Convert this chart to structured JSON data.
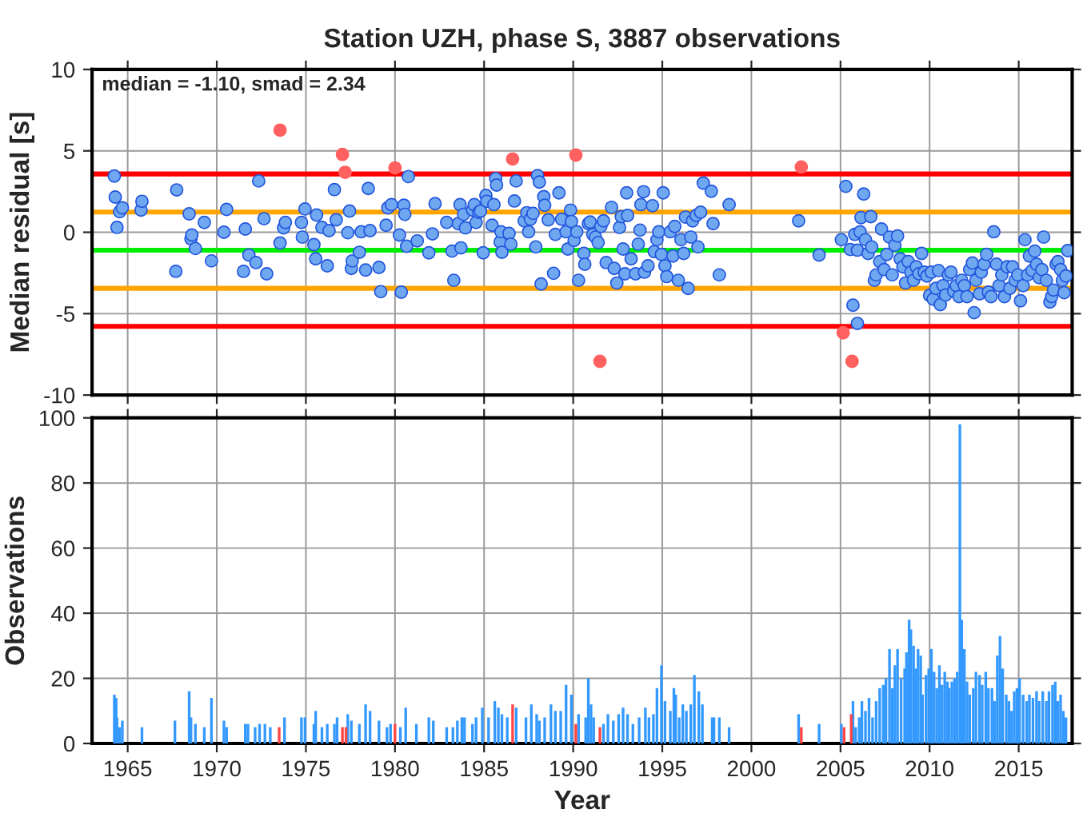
{
  "chart_data": [
    {
      "type": "scatter",
      "title": "Station UZH, phase S, 3887 observations",
      "ylabel": "Median residual [s]",
      "xlim": [
        1963,
        2018
      ],
      "xticks": [
        1965,
        1970,
        1975,
        1980,
        1985,
        1990,
        1995,
        2000,
        2005,
        2010,
        2015
      ],
      "ylim": [
        -10,
        10
      ],
      "yticks": [
        -10,
        -5,
        0,
        5,
        10
      ],
      "grid": true,
      "legend": false,
      "tick_labels": "y",
      "marker": "circle",
      "annotations": [
        "median = -1.10, smad = 2.34"
      ],
      "ref_lines": [
        {
          "axis": "y",
          "value": 3.58,
          "color": "#ff0000"
        },
        {
          "axis": "y",
          "value": 1.24,
          "color": "#ffa500"
        },
        {
          "axis": "y",
          "value": -1.1,
          "color": "#00ee00"
        },
        {
          "axis": "y",
          "value": -3.44,
          "color": "#ffa500"
        },
        {
          "axis": "y",
          "value": -5.78,
          "color": "#ff0000"
        }
      ],
      "series": [
        {
          "color": "#6fa8f0",
          "x": [
            1964.25,
            1964.3,
            1964.4,
            1964.55,
            1964.7,
            1965.75,
            1965.8,
            1967.75,
            1967.7,
            1968.45,
            1968.55,
            1968.6,
            1968.8,
            1969.3,
            1969.7,
            1970.4,
            1970.55,
            1971.5,
            1971.6,
            1971.8,
            1972.2,
            1972.35,
            1972.65,
            1972.8,
            1973.55,
            1973.75,
            1973.85,
            1974.75,
            1974.8,
            1974.95,
            1975.45,
            1975.55,
            1975.6,
            1975.9,
            1976.2,
            1976.3,
            1976.6,
            1976.7,
            1977.35,
            1977.45,
            1977.55,
            1977.6,
            1978.0,
            1978.1,
            1978.35,
            1978.5,
            1978.6,
            1979.1,
            1979.2,
            1979.5,
            1979.6,
            1979.8,
            1980.25,
            1980.35,
            1980.5,
            1980.55,
            1980.65,
            1980.75,
            1981.25,
            1981.9,
            1982.1,
            1982.25,
            1982.9,
            1983.2,
            1983.3,
            1983.55,
            1983.65,
            1983.7,
            1983.85,
            1983.95,
            1984.35,
            1984.45,
            1984.55,
            1984.7,
            1984.8,
            1984.95,
            1985.1,
            1985.15,
            1985.45,
            1985.55,
            1985.65,
            1985.7,
            1985.9,
            1985.95,
            1986.0,
            1986.4,
            1986.5,
            1986.7,
            1986.8,
            1987.25,
            1987.4,
            1987.5,
            1987.6,
            1987.75,
            1987.9,
            1988.0,
            1988.1,
            1988.2,
            1988.35,
            1988.4,
            1988.6,
            1988.9,
            1989.0,
            1989.2,
            1989.35,
            1989.6,
            1989.7,
            1989.85,
            1989.9,
            1990.05,
            1990.2,
            1990.3,
            1990.6,
            1990.65,
            1990.85,
            1990.95,
            1991.1,
            1991.25,
            1991.4,
            1991.55,
            1991.7,
            1991.85,
            1992.15,
            1992.3,
            1992.45,
            1992.6,
            1992.7,
            1992.8,
            1992.9,
            1993.0,
            1993.05,
            1993.25,
            1993.5,
            1993.65,
            1993.75,
            1993.8,
            1993.95,
            1994.0,
            1994.2,
            1994.45,
            1994.55,
            1994.7,
            1994.8,
            1994.95,
            1995.05,
            1995.15,
            1995.25,
            1995.45,
            1995.6,
            1995.7,
            1995.9,
            1996.05,
            1996.2,
            1996.3,
            1996.45,
            1996.6,
            1996.7,
            1996.9,
            1997.0,
            1997.15,
            1997.3,
            1997.75,
            1997.85,
            1998.2,
            1998.75,
            2002.65,
            2003.8,
            2005.05,
            2005.3,
            2005.55,
            2005.7,
            2005.8,
            2005.95,
            2005.95,
            2006.1,
            2006.15,
            2006.3,
            2006.4,
            2006.55,
            2006.7,
            2006.75,
            2006.9,
            2007.0,
            2007.2,
            2007.3,
            2007.45,
            2007.6,
            2007.75,
            2007.9,
            2008.05,
            2008.2,
            2008.35,
            2008.5,
            2008.65,
            2008.8,
            2008.95,
            2009.1,
            2009.25,
            2009.4,
            2009.55,
            2009.7,
            2009.85,
            2010.0,
            2010.1,
            2010.2,
            2010.35,
            2010.5,
            2010.6,
            2010.75,
            2010.9,
            2011.05,
            2011.2,
            2011.35,
            2011.5,
            2011.65,
            2011.8,
            2011.95,
            2012.1,
            2012.25,
            2012.4,
            2012.5,
            2012.6,
            2012.8,
            2012.9,
            2013.05,
            2013.2,
            2013.3,
            2013.45,
            2013.6,
            2013.75,
            2013.9,
            2014.05,
            2014.2,
            2014.35,
            2014.5,
            2014.65,
            2014.8,
            2014.95,
            2015.1,
            2015.25,
            2015.35,
            2015.5,
            2015.6,
            2015.75,
            2015.9,
            2016.0,
            2016.15,
            2016.3,
            2016.4,
            2016.55,
            2016.75,
            2016.85,
            2016.95,
            2017.1,
            2017.2,
            2017.35,
            2017.45,
            2017.55,
            2017.65,
            2017.75
          ],
          "values": [
            3.45,
            2.16,
            0.3,
            1.26,
            1.5,
            1.36,
            1.9,
            2.6,
            -2.4,
            1.13,
            -0.4,
            -0.17,
            -1.0,
            0.6,
            -1.76,
            0,
            1.4,
            -2.4,
            0.2,
            -1.4,
            -1.86,
            3.15,
            0.83,
            -2.55,
            -0.66,
            0.27,
            0.6,
            0.6,
            -0.3,
            1.43,
            -0.76,
            -1.63,
            1.06,
            0.3,
            -2.06,
            0.1,
            2.62,
            0.76,
            -0.03,
            1.3,
            -2.22,
            -1.76,
            -1.23,
            0.03,
            -2.32,
            2.69,
            0.1,
            -2.16,
            -3.65,
            0.43,
            1.5,
            1.7,
            -0.17,
            -3.68,
            1.66,
            1.1,
            -0.86,
            3.42,
            -0.53,
            -1.26,
            -0.1,
            1.76,
            0.6,
            -1.16,
            -2.95,
            0.53,
            1.7,
            -0.96,
            1.1,
            0.27,
            1.36,
            1.7,
            0.6,
            1.23,
            1.3,
            -1.26,
            2.26,
            1.9,
            0.43,
            1.7,
            3.3,
            2.9,
            -0.6,
            0.03,
            -1.23,
            -0.07,
            -0.73,
            1.92,
            3.15,
            0.7,
            1.2,
            0.03,
            0.8,
            1.16,
            -0.9,
            3.48,
            3.08,
            -3.18,
            2.19,
            1.66,
            0.76,
            -2.52,
            -0.13,
            2.42,
            0.8,
            0.03,
            -1.03,
            1.36,
            0.66,
            -0.5,
            0.03,
            -2.95,
            -1.3,
            -1.96,
            0.53,
            0.63,
            -0.13,
            -0.3,
            -0.63,
            0.36,
            0.7,
            -1.86,
            1.53,
            -2.22,
            -3.12,
            0.3,
            0.96,
            -1.03,
            -2.55,
            2.42,
            1.03,
            -1.63,
            -2.55,
            -0.73,
            0.13,
            1.7,
            2.49,
            -2.45,
            -2.06,
            1.63,
            -1.19,
            -0.46,
            0.03,
            -1.36,
            2.42,
            -2.06,
            -2.72,
            0.03,
            -1.46,
            0.36,
            -2.95,
            -0.46,
            -1.3,
            0.93,
            -3.45,
            -0.3,
            0.7,
            1.03,
            -0.9,
            1.23,
            3.02,
            2.52,
            0.53,
            -2.62,
            1.7,
            0.7,
            -1.4,
            -0.46,
            2.82,
            -1.06,
            -4.48,
            -0.13,
            -5.6,
            -1.1,
            0.03,
            0.9,
            2.35,
            -0.46,
            -1.3,
            0.96,
            -0.9,
            -2.95,
            -2.62,
            -1.8,
            0.2,
            -2.29,
            -1.36,
            -0.3,
            -2.62,
            -0.8,
            -0.23,
            -1.63,
            -2.12,
            -3.12,
            -1.8,
            -2.45,
            -2.95,
            -2.12,
            -2.55,
            -1.3,
            -2.45,
            -2.69,
            -3.88,
            -2.45,
            -4.11,
            -3.45,
            -2.35,
            -4.44,
            -3.28,
            -3.85,
            -2.62,
            -2.45,
            -3.62,
            -3.28,
            -3.95,
            -2.95,
            -3.28,
            -3.95,
            -2.29,
            -1.89,
            -4.94,
            -2.95,
            -3.78,
            -2.45,
            -1.96,
            -1.36,
            -3.68,
            -3.95,
            0.03,
            -1.96,
            -3.28,
            -2.62,
            -3.95,
            -2.12,
            -3.45,
            -2.12,
            -2.95,
            -2.62,
            -4.21,
            -3.28,
            -0.46,
            -2.62,
            -1.46,
            -2.35,
            -1.16,
            -1.96,
            -2.79,
            -2.29,
            -0.3,
            -2.95,
            -4.28,
            -3.95,
            -3.55,
            -1.96,
            -1.8,
            -2.29,
            -2.95,
            -3.71,
            -2.69,
            -1.13
          ]
        },
        {
          "color": "#ff6060",
          "x": [
            1973.55,
            1977.05,
            1977.2,
            1980.0,
            1986.6,
            1990.15,
            1991.5,
            2002.8,
            2005.15,
            2005.65
          ],
          "values": [
            6.27,
            4.78,
            3.68,
            3.95,
            4.5,
            4.74,
            -7.93,
            4.01,
            -6.17,
            -7.93
          ]
        }
      ]
    },
    {
      "type": "bar",
      "xlabel": "Year",
      "ylabel": "Observations",
      "xlim": [
        1963,
        2018
      ],
      "xticks": [
        1965,
        1970,
        1975,
        1980,
        1985,
        1990,
        1995,
        2000,
        2005,
        2010,
        2015
      ],
      "ylim": [
        0,
        100
      ],
      "yticks": [
        0,
        20,
        40,
        60,
        80,
        100
      ],
      "grid": true,
      "legend": false,
      "series": [
        {
          "color": "#3399ff",
          "x": [
            1964.25,
            1964.35,
            1964.4,
            1964.55,
            1964.7,
            1965.8,
            1967.65,
            1968.45,
            1968.55,
            1968.8,
            1969.3,
            1969.7,
            1970.4,
            1970.55,
            1971.6,
            1971.75,
            1972.15,
            1972.4,
            1972.7,
            1973.0,
            1973.8,
            1974.75,
            1974.95,
            1975.45,
            1975.55,
            1975.9,
            1976.2,
            1976.6,
            1976.75,
            1977.35,
            1977.55,
            1978.0,
            1978.35,
            1978.6,
            1979.1,
            1979.55,
            1979.75,
            1980.3,
            1980.6,
            1981.2,
            1981.9,
            1982.15,
            1982.9,
            1983.25,
            1983.5,
            1983.75,
            1983.9,
            1984.35,
            1984.55,
            1984.9,
            1985.25,
            1985.6,
            1985.8,
            1986.0,
            1986.3,
            1986.8,
            1987.35,
            1987.65,
            1987.95,
            1988.1,
            1988.4,
            1988.75,
            1989.0,
            1989.3,
            1989.6,
            1989.9,
            1990.3,
            1990.7,
            1990.85,
            1991.0,
            1991.15,
            1991.7,
            1991.95,
            1992.25,
            1992.55,
            1992.8,
            1993.05,
            1993.35,
            1993.7,
            1994.05,
            1994.25,
            1994.5,
            1994.7,
            1994.95,
            1995.15,
            1995.45,
            1995.65,
            1995.75,
            1995.95,
            1996.15,
            1996.35,
            1996.6,
            1996.8,
            1997.05,
            1997.25,
            1997.8,
            1997.9,
            1998.2,
            1998.75,
            2002.65,
            2003.8,
            2005.05,
            2005.7,
            2005.85,
            2006.05,
            2006.2,
            2006.4,
            2006.6,
            2006.8,
            2007.0,
            2007.2,
            2007.4,
            2007.55,
            2007.75,
            2007.9,
            2008.05,
            2008.2,
            2008.4,
            2008.6,
            2008.7,
            2008.85,
            2008.95,
            2009.1,
            2009.2,
            2009.35,
            2009.5,
            2009.6,
            2009.8,
            2009.95,
            2010.1,
            2010.25,
            2010.4,
            2010.55,
            2010.7,
            2010.85,
            2011.0,
            2011.1,
            2011.25,
            2011.4,
            2011.55,
            2011.7,
            2011.8,
            2011.95,
            2012.1,
            2012.25,
            2012.45,
            2012.6,
            2012.8,
            2012.95,
            2013.15,
            2013.3,
            2013.5,
            2013.65,
            2013.8,
            2013.95,
            2014.1,
            2014.3,
            2014.45,
            2014.6,
            2014.75,
            2014.9,
            2015.05,
            2015.25,
            2015.45,
            2015.6,
            2015.8,
            2016.0,
            2016.15,
            2016.35,
            2016.55,
            2016.7,
            2016.9,
            2017.05,
            2017.2,
            2017.35,
            2017.5,
            2017.65
          ],
          "values": [
            15,
            14,
            8,
            5,
            7,
            5,
            7,
            16,
            8,
            6,
            5,
            14,
            7,
            5,
            6,
            6,
            5,
            6,
            6,
            5,
            8,
            8,
            8,
            6,
            10,
            5,
            6,
            6,
            8,
            9,
            7,
            6,
            12,
            10,
            7,
            5,
            6,
            5,
            11,
            6,
            8,
            7,
            5,
            5,
            7,
            8,
            8,
            6,
            8,
            11,
            8,
            13,
            11,
            9,
            8,
            11,
            8,
            12,
            9,
            7,
            8,
            12,
            10,
            10,
            18,
            15,
            9,
            8,
            20,
            12,
            8,
            6,
            9,
            7,
            9,
            11,
            9,
            6,
            8,
            11,
            8,
            9,
            17,
            24,
            13,
            10,
            17,
            15,
            8,
            12,
            10,
            12,
            21,
            16,
            12,
            8,
            8,
            8,
            5,
            9,
            6,
            6,
            13,
            5,
            8,
            13,
            10,
            14,
            8,
            13,
            17,
            18,
            20,
            29,
            17,
            24,
            29,
            20,
            23,
            28,
            38,
            35,
            30,
            23,
            29,
            27,
            15,
            21,
            23,
            29,
            22,
            17,
            24,
            18,
            22,
            19,
            17,
            19,
            20,
            22,
            98,
            38,
            29,
            19,
            15,
            17,
            22,
            21,
            18,
            22,
            17,
            17,
            13,
            27,
            33,
            23,
            15,
            13,
            10,
            16,
            17,
            20,
            15,
            13,
            15,
            14,
            16,
            13,
            16,
            13,
            16,
            18,
            19,
            13,
            15,
            10,
            8
          ]
        },
        {
          "color": "#ff4444",
          "x": [
            1973.5,
            1977.05,
            1977.25,
            1980.0,
            1986.6,
            1990.15,
            1991.5,
            2002.8,
            2005.2,
            2005.6
          ],
          "values": [
            5,
            5,
            5,
            6,
            12,
            6,
            5,
            5,
            5,
            9
          ]
        }
      ]
    }
  ]
}
